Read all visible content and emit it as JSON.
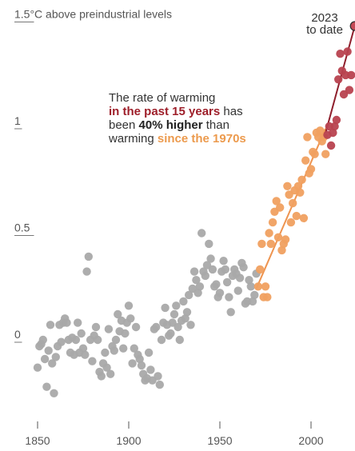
{
  "chart_data": {
    "type": "scatter",
    "title": "",
    "xlabel": "",
    "ylabel": "",
    "y_top_label": "1.5°C above preindustrial levels",
    "xlim": [
      1843,
      2027
    ],
    "ylim": [
      -0.38,
      1.55
    ],
    "x_ticks": [
      1850,
      1900,
      1950,
      2000
    ],
    "x_tick_labels": [
      "1850",
      "1900",
      "1950",
      "2000"
    ],
    "y_ticks": [
      1.5,
      1,
      0.5,
      0
    ],
    "y_tick_labels": [
      "1.5",
      "1",
      "0.5",
      "0"
    ],
    "grid": false,
    "colors": {
      "gray": "#a9a9a9",
      "orange": "#f0a060",
      "orange_line": "#ee9450",
      "red": "#b8424f",
      "red_line": "#8f1f2c",
      "highlight": "#c44a56"
    },
    "series": [
      {
        "name": "",
        "color_key": "gray",
        "x": [
          1850,
          1851,
          1852,
          1853,
          1854,
          1855,
          1856,
          1857,
          1858,
          1859,
          1860,
          1861,
          1862,
          1863,
          1864,
          1865,
          1866,
          1867,
          1868,
          1869,
          1870,
          1871,
          1872,
          1873,
          1874,
          1875,
          1876,
          1877,
          1878,
          1879,
          1880,
          1881,
          1882,
          1883,
          1884,
          1885,
          1886,
          1887,
          1888,
          1889,
          1890,
          1891,
          1892,
          1893,
          1894,
          1895,
          1896,
          1897,
          1898,
          1899,
          1900,
          1901,
          1902,
          1903,
          1904,
          1905,
          1906,
          1907,
          1908,
          1909,
          1910,
          1911,
          1912,
          1913,
          1914,
          1915,
          1916,
          1917,
          1918,
          1919,
          1920,
          1921,
          1922,
          1923,
          1924,
          1925,
          1926,
          1927,
          1928,
          1929,
          1930,
          1931,
          1932,
          1933,
          1934,
          1935,
          1936,
          1937,
          1938,
          1939,
          1940,
          1941,
          1942,
          1943,
          1944,
          1945,
          1946,
          1947,
          1948,
          1949,
          1950,
          1951,
          1952,
          1953,
          1954,
          1955,
          1956,
          1957,
          1958,
          1959,
          1960,
          1961,
          1962,
          1963,
          1964,
          1965,
          1966,
          1967,
          1968,
          1969,
          1970
        ],
        "y": [
          -0.13,
          -0.03,
          -0.02,
          0.0,
          -0.09,
          -0.22,
          -0.05,
          0.07,
          -0.11,
          -0.25,
          -0.08,
          -0.03,
          0.07,
          -0.01,
          0.08,
          0.1,
          0.08,
          0.0,
          -0.06,
          0.01,
          -0.07,
          0.0,
          0.08,
          -0.06,
          0.03,
          -0.04,
          -0.07,
          0.32,
          0.39,
          0.0,
          -0.1,
          0.02,
          0.06,
          0.0,
          -0.15,
          -0.17,
          -0.11,
          -0.06,
          -0.13,
          0.05,
          -0.16,
          -0.03,
          -0.05,
          0.0,
          0.12,
          0.04,
          0.09,
          -0.04,
          0.03,
          0.08,
          0.16,
          0.1,
          -0.11,
          -0.04,
          0.06,
          -0.07,
          -0.09,
          -0.12,
          -0.16,
          -0.19,
          -0.18,
          -0.06,
          -0.14,
          -0.19,
          0.05,
          0.06,
          -0.17,
          -0.21,
          0.0,
          0.08,
          0.15,
          0.07,
          0.02,
          0.03,
          0.08,
          0.12,
          0.16,
          0.06,
          0.0,
          0.09,
          0.18,
          0.1,
          0.13,
          0.21,
          0.07,
          0.24,
          0.32,
          0.28,
          0.22,
          0.25,
          0.5,
          0.32,
          0.3,
          0.35,
          0.45,
          0.38,
          0.33,
          0.25,
          0.26,
          0.2,
          0.22,
          0.32,
          0.37,
          0.33,
          0.27,
          0.2,
          0.13,
          0.3,
          0.33,
          0.31,
          0.23,
          0.29,
          0.36,
          0.34,
          0.17,
          0.18,
          0.28,
          0.25,
          0.18,
          0.21,
          0.31
        ]
      },
      {
        "name": "",
        "color_key": "orange",
        "x": [
          1971,
          1972,
          1973,
          1974,
          1975,
          1976,
          1977,
          1978,
          1979,
          1980,
          1981,
          1982,
          1983,
          1984,
          1985,
          1986,
          1987,
          1988,
          1989,
          1990,
          1991,
          1992,
          1993,
          1994,
          1995,
          1996,
          1997,
          1998,
          1999,
          2000,
          2001,
          2002,
          2003,
          2004,
          2005,
          2006,
          2007,
          2008
        ],
        "y": [
          0.25,
          0.33,
          0.45,
          0.2,
          0.25,
          0.2,
          0.5,
          0.45,
          0.55,
          0.6,
          0.65,
          0.48,
          0.62,
          0.42,
          0.45,
          0.47,
          0.72,
          0.68,
          0.55,
          0.64,
          0.7,
          0.58,
          0.72,
          0.69,
          0.75,
          0.57,
          0.84,
          0.95,
          0.78,
          0.8,
          0.88,
          0.87,
          0.97,
          0.95,
          0.98,
          0.93,
          0.95,
          0.87
        ]
      },
      {
        "name": "",
        "color_key": "red",
        "x": [
          2009,
          2010,
          2011,
          2012,
          2013,
          2014,
          2015,
          2016,
          2017,
          2018,
          2019,
          2020,
          2021,
          2022
        ],
        "y": [
          0.96,
          1.0,
          0.91,
          0.97,
          1.0,
          1.03,
          1.22,
          1.34,
          1.26,
          1.15,
          1.24,
          1.35,
          1.17,
          1.24
        ]
      }
    ],
    "highlight_point": {
      "x": 2024,
      "y": 1.47,
      "label": [
        "2023",
        "to date"
      ]
    },
    "trend_lines": [
      {
        "color_key": "orange_line",
        "x": [
          1970,
          2008
        ],
        "y": [
          0.24,
          0.99
        ]
      },
      {
        "color_key": "red_line",
        "x": [
          2008,
          2024
        ],
        "y": [
          0.97,
          1.47
        ]
      }
    ],
    "annotation": {
      "lines": [
        [
          {
            "text": "The rate of warming",
            "style": "normal"
          }
        ],
        [
          {
            "text": "in the past 15 years",
            "style": "red"
          },
          {
            "text": " has",
            "style": "normal"
          }
        ],
        [
          {
            "text": "been ",
            "style": "normal"
          },
          {
            "text": "40% higher",
            "style": "bold"
          },
          {
            "text": " than",
            "style": "normal"
          }
        ],
        [
          {
            "text": "warming ",
            "style": "normal"
          },
          {
            "text": "since the 1970s",
            "style": "orange"
          }
        ]
      ]
    }
  }
}
